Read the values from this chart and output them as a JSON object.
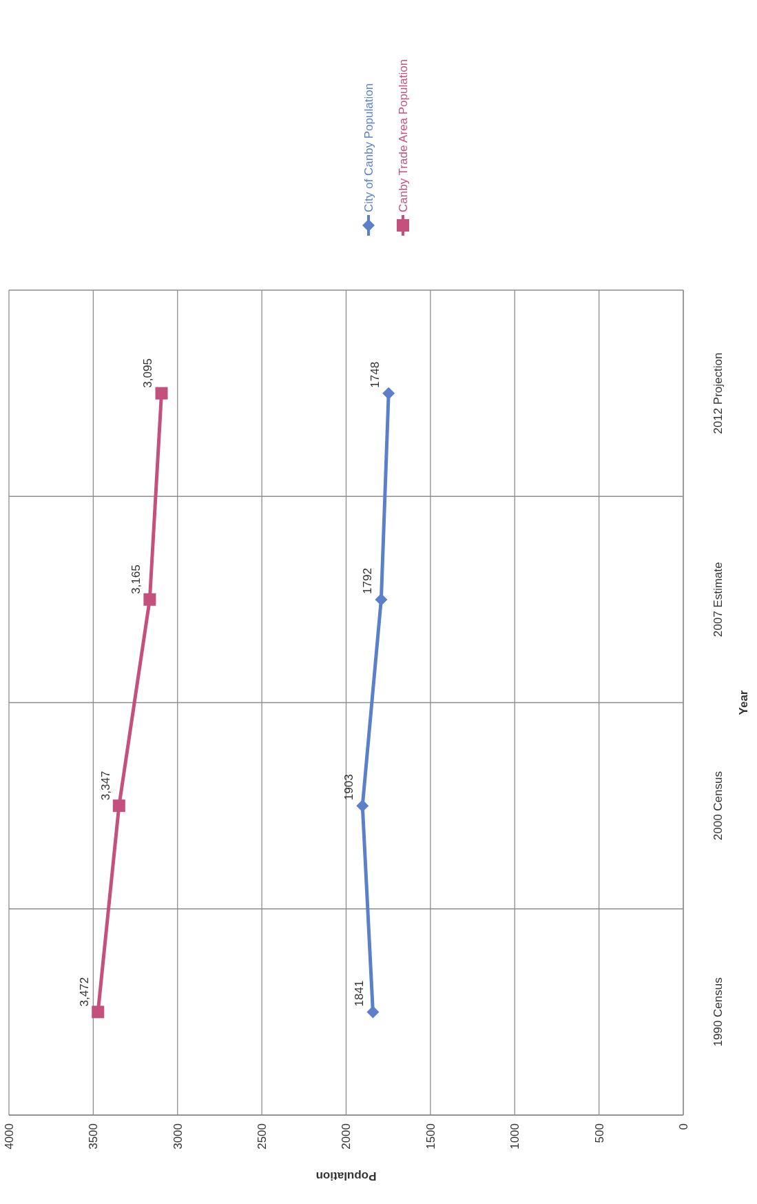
{
  "chart_data": {
    "type": "line",
    "orientation": "horizontal",
    "xlabel": "Population",
    "ylabel": "Year",
    "categories": [
      "2012 Projection",
      "2007 Estimate",
      "2000 Census",
      "1990 Census"
    ],
    "series": [
      {
        "name": "City of Canby Population",
        "color": "#5b80c9",
        "marker": "diamond",
        "values": [
          1748,
          1792,
          1903,
          1841
        ],
        "value_labels": [
          "1748",
          "1792",
          "1903",
          "1841"
        ]
      },
      {
        "name": "Canby Trade Area Population",
        "color": "#c4507e",
        "marker": "square",
        "values": [
          3095,
          3165,
          3347,
          3472
        ],
        "value_labels": [
          "3,095",
          "3,165",
          "3,347",
          "3,472"
        ]
      }
    ],
    "xlim": [
      4000,
      0
    ],
    "xticks": [
      4000,
      3500,
      3000,
      2500,
      2000,
      1500,
      1000,
      500,
      0
    ],
    "grid": true,
    "legend": "top"
  }
}
